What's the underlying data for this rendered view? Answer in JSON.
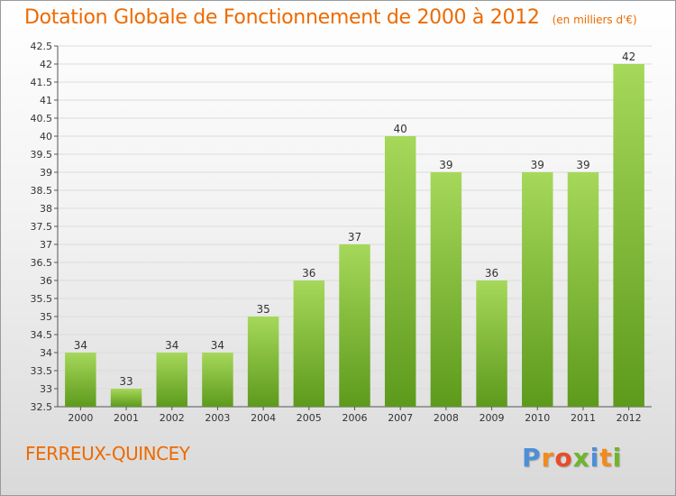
{
  "title": "Dotation Globale de Fonctionnement de 2000 à 2012",
  "subtitle": "(en milliers d'€)",
  "commune": "FERREUX-QUINCEY",
  "brand": {
    "letters": [
      "P",
      "r",
      "o",
      "x",
      "i",
      "t",
      "i"
    ],
    "colors": [
      "#4d8fd6",
      "#f28a1c",
      "#e84d2a",
      "#6fb52c",
      "#4d8fd6",
      "#f28a1c",
      "#6fb52c"
    ]
  },
  "colors": {
    "accent": "#ee6a00",
    "bar_light": "#a6d85a",
    "bar_dark": "#5d9a1c"
  },
  "chart_data": {
    "type": "bar",
    "categories": [
      "2000",
      "2001",
      "2002",
      "2003",
      "2004",
      "2005",
      "2006",
      "2007",
      "2008",
      "2009",
      "2010",
      "2011",
      "2012"
    ],
    "values": [
      34,
      33,
      34,
      34,
      35,
      36,
      37,
      40,
      39,
      36,
      39,
      39,
      42
    ],
    "data_labels": [
      "34",
      "33",
      "34",
      "34",
      "35",
      "36",
      "37",
      "40",
      "39",
      "36",
      "39",
      "39",
      "42"
    ],
    "ylim": [
      32.5,
      42.5
    ],
    "yticks": [
      "32.5",
      "33",
      "33.5",
      "34",
      "34.5",
      "35",
      "35.5",
      "36",
      "36.5",
      "37",
      "37.5",
      "38",
      "38.5",
      "39",
      "39.5",
      "40",
      "40.5",
      "41",
      "41.5",
      "42",
      "42.5"
    ],
    "grid": true,
    "xlabel": "",
    "ylabel": ""
  }
}
